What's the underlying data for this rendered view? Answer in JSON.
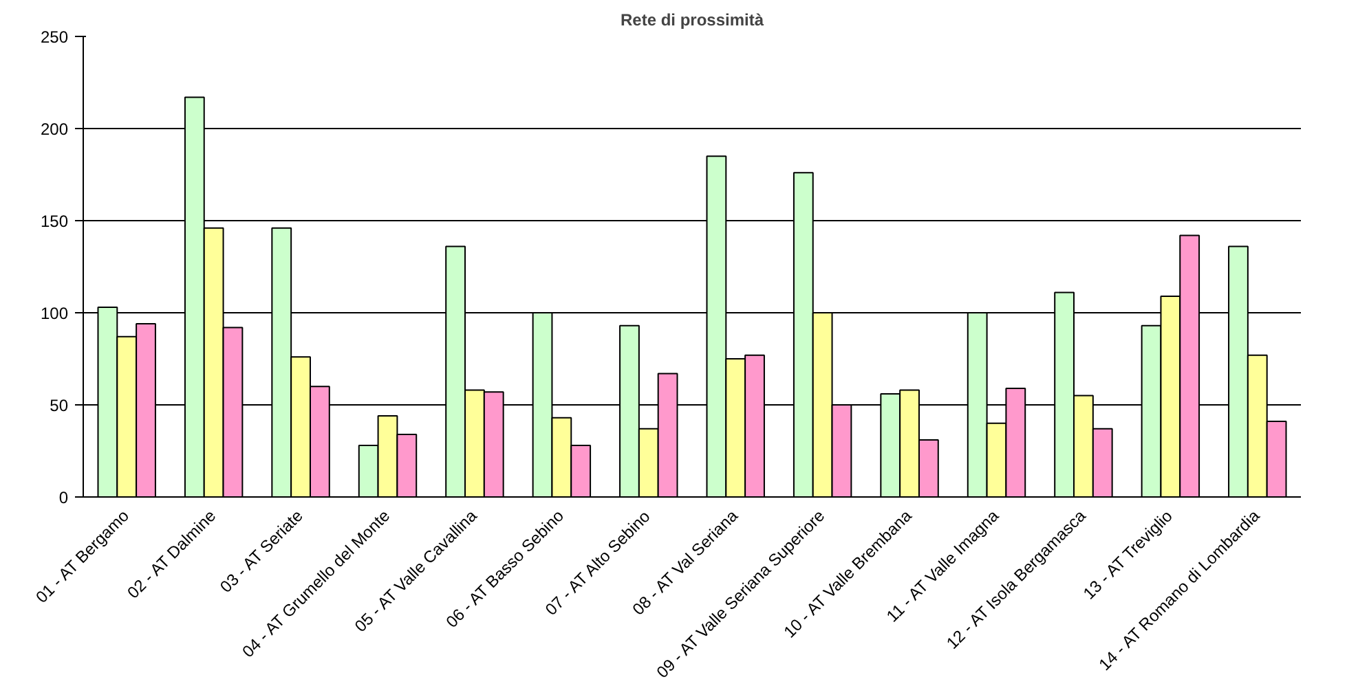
{
  "chart_data": {
    "type": "bar",
    "title": "Rete di prossimità",
    "categories": [
      "01 - AT Bergamo",
      "02 - AT Dalmine",
      "03 - AT Seriate",
      "04 - AT Grumello del Monte",
      "05 - AT Valle Cavallina",
      "06 - AT Basso Sebino",
      "07 - AT Alto Sebino",
      "08 - AT Val Seriana",
      "09 - AT Valle Seriana Superiore",
      "10 - AT Valle Brembana",
      "11 - AT Valle Imagna",
      "12 - AT Isola Bergamasca",
      "13 - AT Treviglio",
      "14 - AT Romano di Lombardia"
    ],
    "series": [
      {
        "color": "#ccffcc",
        "values": [
          103,
          217,
          146,
          28,
          136,
          100,
          93,
          185,
          176,
          56,
          100,
          111,
          93,
          136
        ]
      },
      {
        "color": "#ffff99",
        "values": [
          87,
          146,
          76,
          44,
          58,
          43,
          37,
          75,
          100,
          58,
          40,
          55,
          109,
          77
        ]
      },
      {
        "color": "#ff99cc",
        "values": [
          94,
          92,
          60,
          34,
          57,
          28,
          67,
          77,
          50,
          31,
          59,
          37,
          142,
          41
        ]
      }
    ],
    "ylim": [
      0,
      250
    ],
    "yticks": [
      0,
      50,
      100,
      150,
      200,
      250
    ],
    "grid": "y"
  }
}
